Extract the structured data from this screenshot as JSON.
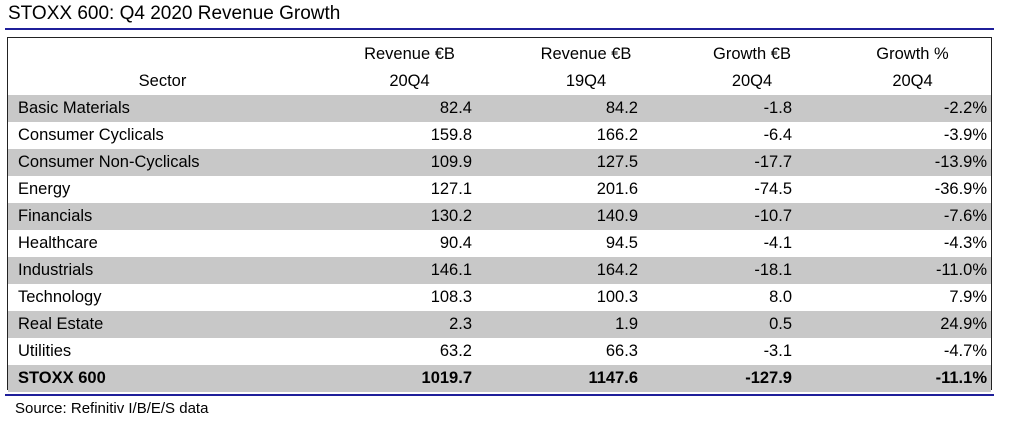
{
  "title": "STOXX 600: Q4 2020 Revenue Growth",
  "source": "Source: Refinitiv I/B/E/S data",
  "colors": {
    "rule": "#1f1f9a",
    "shade": "#c8c8c8",
    "border": "#222222"
  },
  "chart_data": {
    "type": "table",
    "title": "STOXX 600: Q4 2020 Revenue Growth",
    "columns": [
      {
        "line1": "",
        "line2": "Sector"
      },
      {
        "line1": "Revenue €B",
        "line2": "20Q4"
      },
      {
        "line1": "Revenue €B",
        "line2": "19Q4"
      },
      {
        "line1": "Growth €B",
        "line2": "20Q4"
      },
      {
        "line1": "Growth %",
        "line2": "20Q4"
      }
    ],
    "rows": [
      {
        "sector": "Basic Materials",
        "rev_20q4": "82.4",
        "rev_19q4": "84.2",
        "growth_eur": "-1.8",
        "growth_pct": "-2.2%"
      },
      {
        "sector": "Consumer Cyclicals",
        "rev_20q4": "159.8",
        "rev_19q4": "166.2",
        "growth_eur": "-6.4",
        "growth_pct": "-3.9%"
      },
      {
        "sector": "Consumer Non-Cyclicals",
        "rev_20q4": "109.9",
        "rev_19q4": "127.5",
        "growth_eur": "-17.7",
        "growth_pct": "-13.9%"
      },
      {
        "sector": "Energy",
        "rev_20q4": "127.1",
        "rev_19q4": "201.6",
        "growth_eur": "-74.5",
        "growth_pct": "-36.9%"
      },
      {
        "sector": "Financials",
        "rev_20q4": "130.2",
        "rev_19q4": "140.9",
        "growth_eur": "-10.7",
        "growth_pct": "-7.6%"
      },
      {
        "sector": "Healthcare",
        "rev_20q4": "90.4",
        "rev_19q4": "94.5",
        "growth_eur": "-4.1",
        "growth_pct": "-4.3%"
      },
      {
        "sector": "Industrials",
        "rev_20q4": "146.1",
        "rev_19q4": "164.2",
        "growth_eur": "-18.1",
        "growth_pct": "-11.0%"
      },
      {
        "sector": "Technology",
        "rev_20q4": "108.3",
        "rev_19q4": "100.3",
        "growth_eur": "8.0",
        "growth_pct": "7.9%"
      },
      {
        "sector": "Real Estate",
        "rev_20q4": "2.3",
        "rev_19q4": "1.9",
        "growth_eur": "0.5",
        "growth_pct": "24.9%"
      },
      {
        "sector": "Utilities",
        "rev_20q4": "63.2",
        "rev_19q4": "66.3",
        "growth_eur": "-3.1",
        "growth_pct": "-4.7%"
      }
    ],
    "total": {
      "sector": "STOXX 600",
      "rev_20q4": "1019.7",
      "rev_19q4": "1147.6",
      "growth_eur": "-127.9",
      "growth_pct": "-11.1%"
    }
  }
}
